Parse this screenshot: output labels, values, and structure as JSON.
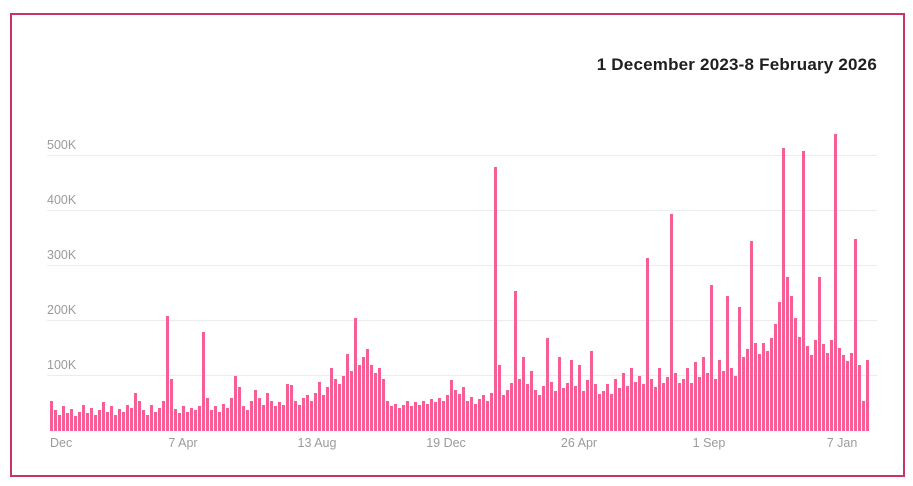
{
  "panel": {
    "border_color": "#c9336a",
    "background_color": "#ffffff"
  },
  "header": {
    "title": "1 December 2023-8 February 2026",
    "title_color": "#1f1f1f"
  },
  "chart_data": {
    "type": "bar",
    "title": "1 December 2023-8 February 2026",
    "x_range_start": "1 December 2023",
    "x_range_end": "8 February 2026",
    "unit": "K",
    "values_unit": "thousands",
    "ylim": [
      0,
      575
    ],
    "grid": true,
    "legend": false,
    "bar_color": "#f85e96",
    "grid_color": "#ececec",
    "axis_label_color": "#9b9b9b",
    "y_tick_values": [
      100,
      200,
      300,
      400,
      500
    ],
    "y_tick_labels": [
      "100K",
      "200K",
      "300K",
      "400K",
      "500K"
    ],
    "x_tick_labels": [
      "Dec",
      "7 Apr",
      "13 Aug",
      "19 Dec",
      "26 Apr",
      "1 Sep",
      "7 Jan"
    ],
    "values": [
      55,
      38,
      30,
      45,
      32,
      40,
      28,
      35,
      48,
      33,
      42,
      30,
      38,
      52,
      35,
      45,
      30,
      40,
      35,
      48,
      42,
      70,
      55,
      38,
      30,
      48,
      35,
      42,
      55,
      210,
      95,
      40,
      32,
      45,
      35,
      42,
      38,
      45,
      180,
      60,
      38,
      45,
      35,
      50,
      42,
      60,
      100,
      80,
      45,
      38,
      55,
      75,
      60,
      48,
      70,
      55,
      45,
      52,
      48,
      85,
      84,
      55,
      48,
      60,
      65,
      55,
      70,
      90,
      65,
      80,
      115,
      95,
      85,
      100,
      140,
      110,
      205,
      120,
      135,
      150,
      120,
      105,
      115,
      95,
      55,
      45,
      50,
      42,
      48,
      55,
      45,
      52,
      48,
      55,
      50,
      58,
      52,
      60,
      55,
      65,
      92,
      75,
      68,
      80,
      55,
      62,
      50,
      58,
      65,
      55,
      70,
      480,
      120,
      65,
      75,
      88,
      255,
      95,
      135,
      85,
      110,
      75,
      65,
      82,
      170,
      90,
      72,
      135,
      78,
      88,
      130,
      82,
      120,
      72,
      92,
      145,
      86,
      68,
      72,
      85,
      68,
      95,
      78,
      105,
      82,
      115,
      90,
      100,
      85,
      315,
      95,
      80,
      115,
      88,
      98,
      395,
      105,
      88,
      95,
      115,
      88,
      125,
      98,
      135,
      105,
      265,
      95,
      130,
      110,
      245,
      115,
      100,
      225,
      135,
      150,
      345,
      160,
      140,
      160,
      145,
      170,
      195,
      235,
      515,
      280,
      245,
      205,
      172,
      510,
      155,
      138,
      165,
      280,
      158,
      142,
      165,
      540,
      152,
      138,
      128,
      142,
      350,
      120,
      55,
      130
    ]
  }
}
